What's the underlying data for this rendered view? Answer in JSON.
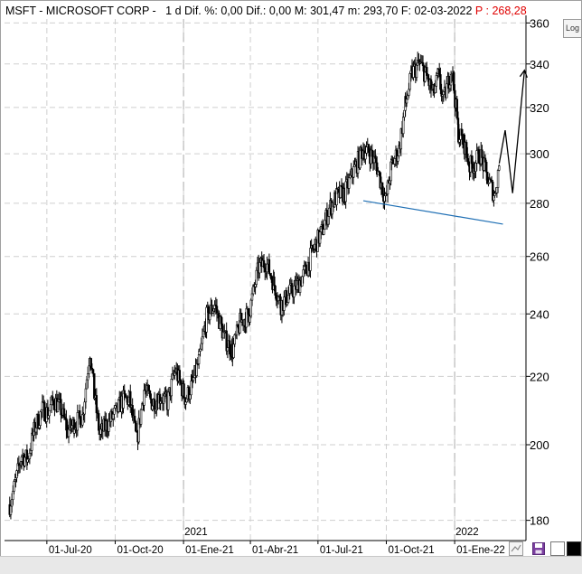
{
  "header": {
    "symbol": "MSFT",
    "name": "MICROSOFT CORP",
    "period": "1 d",
    "dif_pct_label": "Dif. %:",
    "dif_pct": "0,00",
    "dif_label": "Dif.:",
    "dif": "0,00",
    "max_label": "M:",
    "max": "301,47",
    "min_label": "m:",
    "min": "293,70",
    "date_label": "F:",
    "date": "02-03-2022",
    "price_label": "P :",
    "price": "268,28"
  },
  "log_button": "Log",
  "colors": {
    "price_red": "#e00000",
    "trendline": "#1f6fb4",
    "candles": "#000000"
  },
  "icons": [
    "zoom-icon",
    "save-icon",
    "color-box-icon"
  ],
  "chart_data": {
    "type": "candlestick",
    "scale": "log",
    "ylim": [
      175,
      362
    ],
    "y_ticks": [
      180,
      200,
      220,
      240,
      260,
      280,
      300,
      320,
      340,
      360
    ],
    "x_ticks": [
      "01-Jul-20",
      "01-Oct-20",
      "01-Ene-21",
      "01-Abr-21",
      "01-Jul-21",
      "01-Oct-21",
      "01-Ene-22"
    ],
    "year_labels": [
      "2021",
      "2022"
    ],
    "series": [
      {
        "x": [
          "2020-05-12",
          "2020-05-20",
          "2020-05-28",
          "2020-06-05",
          "2020-06-15",
          "2020-06-25",
          "2020-07-03",
          "2020-07-10",
          "2020-07-20",
          "2020-07-29",
          "2020-08-07",
          "2020-08-18",
          "2020-08-28",
          "2020-09-03",
          "2020-09-10",
          "2020-09-21",
          "2020-10-01",
          "2020-10-12",
          "2020-10-20",
          "2020-10-30",
          "2020-11-09",
          "2020-11-20",
          "2020-12-01",
          "2020-12-10",
          "2020-12-21",
          "2021-01-04",
          "2021-01-13",
          "2021-01-22",
          "2021-02-01",
          "2021-02-12",
          "2021-02-25",
          "2021-03-08",
          "2021-03-18",
          "2021-03-30",
          "2021-04-12",
          "2021-04-22",
          "2021-05-03",
          "2021-05-12",
          "2021-05-24",
          "2021-06-04",
          "2021-06-15",
          "2021-06-25",
          "2021-07-06",
          "2021-07-16",
          "2021-07-27",
          "2021-08-06",
          "2021-08-18",
          "2021-08-31",
          "2021-09-09",
          "2021-09-17",
          "2021-09-30",
          "2021-10-08",
          "2021-10-18",
          "2021-10-27",
          "2021-11-05",
          "2021-11-15",
          "2021-11-23",
          "2021-12-03",
          "2021-12-10",
          "2021-12-17",
          "2021-12-28",
          "2022-01-06",
          "2022-01-14",
          "2022-01-21",
          "2022-01-28",
          "2022-02-04",
          "2022-02-14",
          "2022-02-24",
          "2022-03-02"
        ],
        "close": [
          184,
          190,
          197,
          196,
          205,
          210,
          209,
          213,
          210,
          204,
          206,
          208,
          228,
          214,
          203,
          206,
          209,
          213,
          213,
          201,
          216,
          212,
          214,
          212,
          222,
          213,
          218,
          225,
          239,
          243,
          232,
          228,
          237,
          240,
          256,
          258,
          250,
          243,
          247,
          250,
          255,
          263,
          269,
          278,
          283,
          284,
          293,
          302,
          300,
          296,
          281,
          295,
          302,
          322,
          336,
          340,
          335,
          326,
          334,
          323,
          338,
          309,
          304,
          295,
          296,
          300,
          290,
          283,
          296
        ]
      }
    ],
    "projection": {
      "x": [
        "2022-03-02",
        "2022-03-10",
        "2022-03-20",
        "2022-04-05"
      ],
      "y": [
        296,
        310,
        284,
        337
      ]
    },
    "trendline": {
      "x": [
        "2021-08-31",
        "2022-03-07"
      ],
      "y": [
        281,
        272
      ]
    }
  }
}
